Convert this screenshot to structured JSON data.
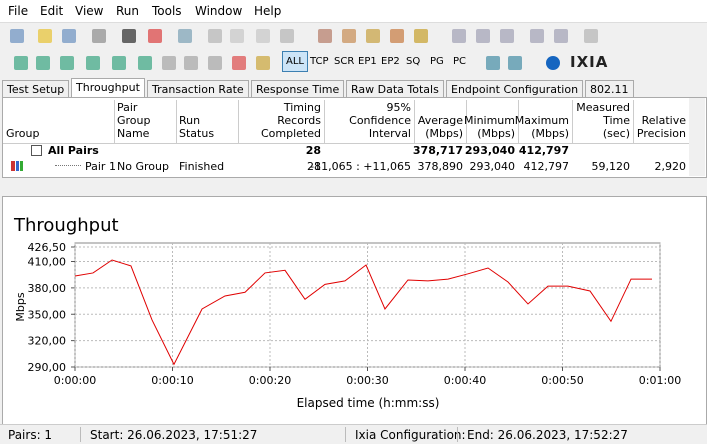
{
  "menu": [
    "File",
    "Edit",
    "View",
    "Run",
    "Tools",
    "Window",
    "Help"
  ],
  "toolbar_buttons": [
    "ALL",
    "TCP",
    "SCR",
    "EP1",
    "EP2",
    "SQ",
    "PG",
    "PC"
  ],
  "logo": "IXIA",
  "tabs": [
    "Test Setup",
    "Throughput",
    "Transaction Rate",
    "Response Time",
    "Raw Data Totals",
    "Endpoint Configuration",
    "802.11"
  ],
  "table": {
    "columns": [
      "Group",
      "Pair Group Name",
      "Run Status",
      "Timing Records Completed",
      "95% Confidence Interval",
      "Average (Mbps)",
      "Minimum (Mbps)",
      "Maximum (Mbps)",
      "Measured Time (sec)",
      "Relative Precision"
    ],
    "rows": [
      {
        "group": "All Pairs",
        "timing_records": "28",
        "average": "378,717",
        "minimum": "293,040",
        "maximum": "412,797"
      },
      {
        "group": "Pair 1",
        "pair_group_name": "No Group",
        "run_status": "Finished",
        "timing_records": "28",
        "confidence_interval": "-11,065 : +11,065",
        "average": "378,890",
        "minimum": "293,040",
        "maximum": "412,797",
        "measured_time": "59,120",
        "relative_precision": "2,920"
      }
    ]
  },
  "chart_data": {
    "type": "line",
    "title": "Throughput",
    "y_label": "Mbps",
    "x_label": "Elapsed time (h:mm:ss)",
    "x": [
      0,
      1.85,
      3.8,
      5.74,
      7.9,
      10.15,
      13.03,
      15.38,
      17.44,
      19.49,
      21.54,
      23.59,
      25.64,
      27.69,
      29.85,
      31.79,
      34.15,
      36.2,
      38.26,
      40.31,
      42.36,
      44.41,
      46.46,
      48.51,
      50.56,
      52.82,
      54.97,
      57.03,
      59.18
    ],
    "values": [
      393.5,
      397,
      411.7,
      405,
      343.5,
      293.04,
      356,
      370.8,
      375,
      397,
      400,
      367,
      384,
      388,
      406,
      356,
      389,
      388,
      390,
      396,
      402.6,
      386.7,
      361.7,
      382,
      382,
      376.5,
      342,
      390,
      390
    ],
    "color": "#e00000",
    "xlim": [
      0,
      60
    ],
    "xticks": [
      {
        "value": 0,
        "label": "0:00:00"
      },
      {
        "value": 10,
        "label": "0:00:10"
      },
      {
        "value": 20,
        "label": "0:00:20"
      },
      {
        "value": 30,
        "label": "0:00:30"
      },
      {
        "value": 40,
        "label": "0:00:40"
      },
      {
        "value": 50,
        "label": "0:00:50"
      },
      {
        "value": 60,
        "label": "0:01:00"
      }
    ],
    "ylim": [
      290,
      426.5
    ],
    "yticks": [
      {
        "value": 290,
        "label": "290,00"
      },
      {
        "value": 320,
        "label": "320,00"
      },
      {
        "value": 350,
        "label": "350,00"
      },
      {
        "value": 380,
        "label": "380,00"
      },
      {
        "value": 410,
        "label": "410,00"
      },
      {
        "value": 426.5,
        "label": "426,50"
      }
    ],
    "grid": true
  },
  "status": [
    "Pairs: 1",
    "Start: 26.06.2023, 17:51:27",
    "Ixia Configuration:",
    "End: 26.06.2023, 17:52:27"
  ]
}
